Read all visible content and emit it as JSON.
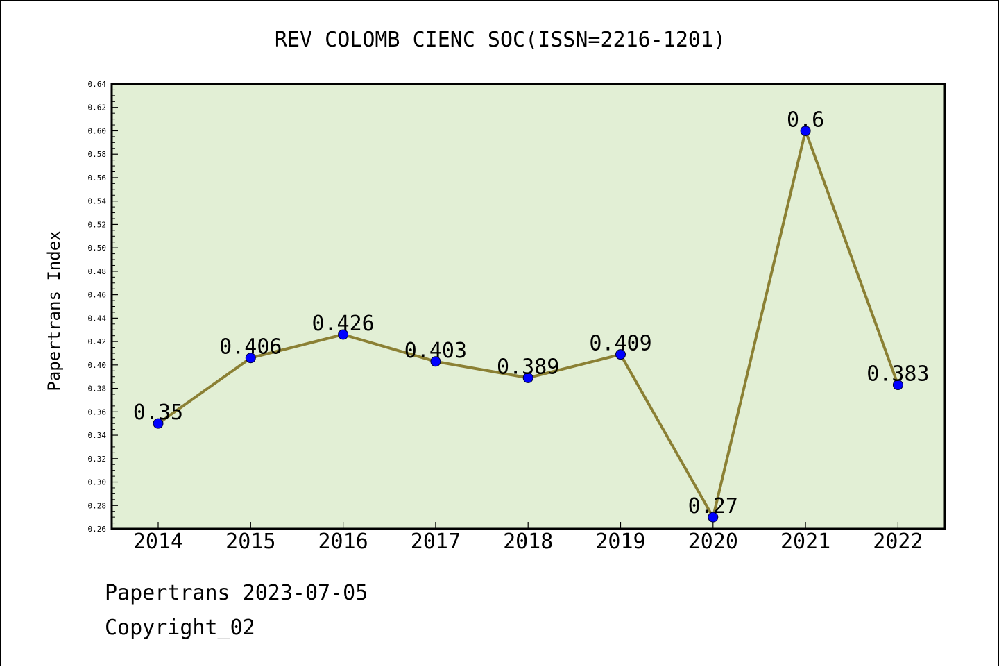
{
  "chart_data": {
    "type": "line",
    "title": "REV COLOMB CIENC SOC(ISSN=2216-1201)",
    "xlabel": "",
    "ylabel": "Papertrans Index",
    "categories": [
      "2014",
      "2015",
      "2016",
      "2017",
      "2018",
      "2019",
      "2020",
      "2021",
      "2022"
    ],
    "series": [
      {
        "values": [
          0.35,
          0.406,
          0.426,
          0.403,
          0.389,
          0.409,
          0.27,
          0.6,
          0.383
        ]
      }
    ],
    "data_labels": [
      "0.35",
      "0.406",
      "0.426",
      "0.403",
      "0.389",
      "0.409",
      "0.27",
      "0.6",
      "0.383"
    ],
    "ylim": [
      0.26,
      0.64
    ],
    "yticks": [
      "0.26",
      "0.28",
      "0.30",
      "0.32",
      "0.34",
      "0.36",
      "0.38",
      "0.40",
      "0.42",
      "0.44",
      "0.46",
      "0.48",
      "0.50",
      "0.52",
      "0.54",
      "0.56",
      "0.58",
      "0.60",
      "0.62",
      "0.64"
    ],
    "grid": false,
    "colors": {
      "plot_background": "#e2efd5",
      "line": "#8b8034",
      "marker": "#0000ff"
    }
  },
  "footer": {
    "source_date": "Papertrans 2023-07-05",
    "copyright": "Copyright_02"
  }
}
